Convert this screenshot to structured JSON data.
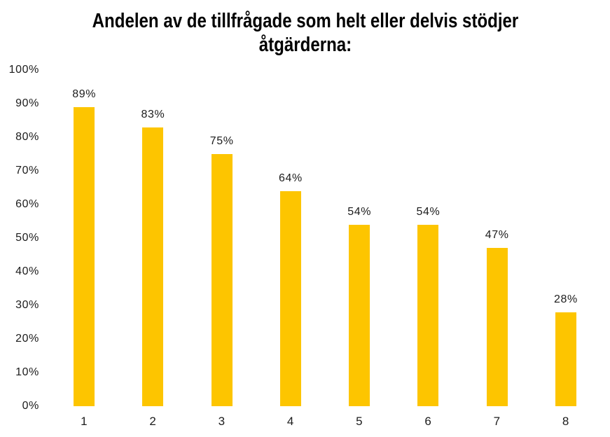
{
  "page": {
    "background_color": "#ffffff"
  },
  "chart_data": {
    "type": "bar",
    "title": "Andelen av de tillfrågade som helt eller delvis stödjer åtgärderna:",
    "categories": [
      "1",
      "2",
      "3",
      "4",
      "5",
      "6",
      "7",
      "8"
    ],
    "values": [
      89,
      83,
      75,
      64,
      54,
      54,
      47,
      28
    ],
    "value_labels": [
      "89%",
      "83%",
      "75%",
      "64%",
      "54%",
      "54%",
      "47%",
      "28%"
    ],
    "xlabel": "",
    "ylabel": "",
    "ylim": [
      0,
      100
    ],
    "ytick_step": 10,
    "ytick_labels": [
      "100%",
      "90%",
      "80%",
      "70%",
      "60%",
      "50%",
      "40%",
      "30%",
      "20%",
      "10%",
      "0%"
    ],
    "grid": false,
    "legend": false,
    "bar_color": "#FDC500",
    "title_color": "#000000",
    "label_color": "#1c1c1c"
  }
}
